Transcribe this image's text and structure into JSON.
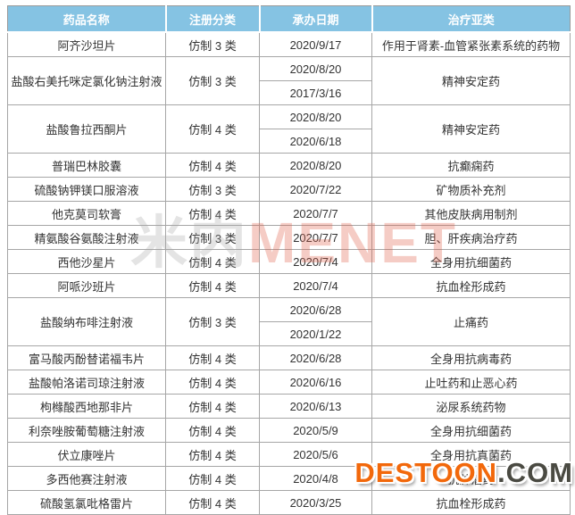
{
  "colors": {
    "header_bg": "#85C3E3",
    "header_text": "#FFFFFF",
    "border": "#A6A6A6",
    "body_text": "#333333",
    "watermark_orange": "#F2680B",
    "watermark_dark": "#4A4A42",
    "watermark_red": "#E15F4B",
    "watermark_gray": "#A5A5A5"
  },
  "table": {
    "headers": [
      "药品名称",
      "注册分类",
      "承办日期",
      "治疗亚类"
    ],
    "rows": [
      {
        "name": "阿齐沙坦片",
        "reg_class": "仿制 3 类",
        "dates": [
          "2020/9/17"
        ],
        "category": "作用于肾素-血管紧张素系统的药物"
      },
      {
        "name": "盐酸右美托咪定氯化钠注射液",
        "reg_class": "仿制 3 类",
        "dates": [
          "2020/8/20",
          "2017/3/16"
        ],
        "category": "精神安定药"
      },
      {
        "name": "盐酸鲁拉西酮片",
        "reg_class": "仿制 4 类",
        "dates": [
          "2020/8/20",
          "2020/6/18"
        ],
        "category": "精神安定药"
      },
      {
        "name": "普瑞巴林胶囊",
        "reg_class": "仿制 4 类",
        "dates": [
          "2020/8/20"
        ],
        "category": "抗癫痫药"
      },
      {
        "name": "硫酸钠钾镁口服溶液",
        "reg_class": "仿制 3 类",
        "dates": [
          "2020/7/22"
        ],
        "category": "矿物质补充剂"
      },
      {
        "name": "他克莫司软膏",
        "reg_class": "仿制 4 类",
        "dates": [
          "2020/7/7"
        ],
        "category": "其他皮肤病用制剂"
      },
      {
        "name": "精氨酸谷氨酸注射液",
        "reg_class": "仿制 3 类",
        "dates": [
          "2020/7/7"
        ],
        "category": "胆、肝疾病治疗药"
      },
      {
        "name": "西他沙星片",
        "reg_class": "仿制 4 类",
        "dates": [
          "2020/7/4"
        ],
        "category": "全身用抗细菌药"
      },
      {
        "name": "阿哌沙班片",
        "reg_class": "仿制 4 类",
        "dates": [
          "2020/7/4"
        ],
        "category": "抗血栓形成药"
      },
      {
        "name": "盐酸纳布啡注射液",
        "reg_class": "仿制 3 类",
        "dates": [
          "2020/6/28",
          "2020/1/22"
        ],
        "category": "止痛药"
      },
      {
        "name": "富马酸丙酚替诺福韦片",
        "reg_class": "仿制 4 类",
        "dates": [
          "2020/6/28"
        ],
        "category": "全身用抗病毒药"
      },
      {
        "name": "盐酸帕洛诺司琼注射液",
        "reg_class": "仿制 4 类",
        "dates": [
          "2020/6/16"
        ],
        "category": "止吐药和止恶心药"
      },
      {
        "name": "枸橼酸西地那非片",
        "reg_class": "仿制 4 类",
        "dates": [
          "2020/6/13"
        ],
        "category": "泌尿系统药物"
      },
      {
        "name": "利奈唑胺葡萄糖注射液",
        "reg_class": "仿制 4 类",
        "dates": [
          "2020/5/9"
        ],
        "category": "全身用抗细菌药"
      },
      {
        "name": "伏立康唑片",
        "reg_class": "仿制 4 类",
        "dates": [
          "2020/5/6"
        ],
        "category": "全身用抗真菌药"
      },
      {
        "name": "多西他赛注射液",
        "reg_class": "仿制 4 类",
        "dates": [
          "2020/4/8"
        ],
        "category": "抗肿瘤药"
      },
      {
        "name": "硫酸氢氯吡格雷片",
        "reg_class": "仿制 4 类",
        "dates": [
          "2020/3/25"
        ],
        "category": "抗血栓形成药"
      }
    ]
  },
  "watermarks": {
    "center_cn": "米内",
    "center_en": "MENET",
    "bottom_main": "DESTOON",
    "bottom_suffix": ".COM"
  }
}
